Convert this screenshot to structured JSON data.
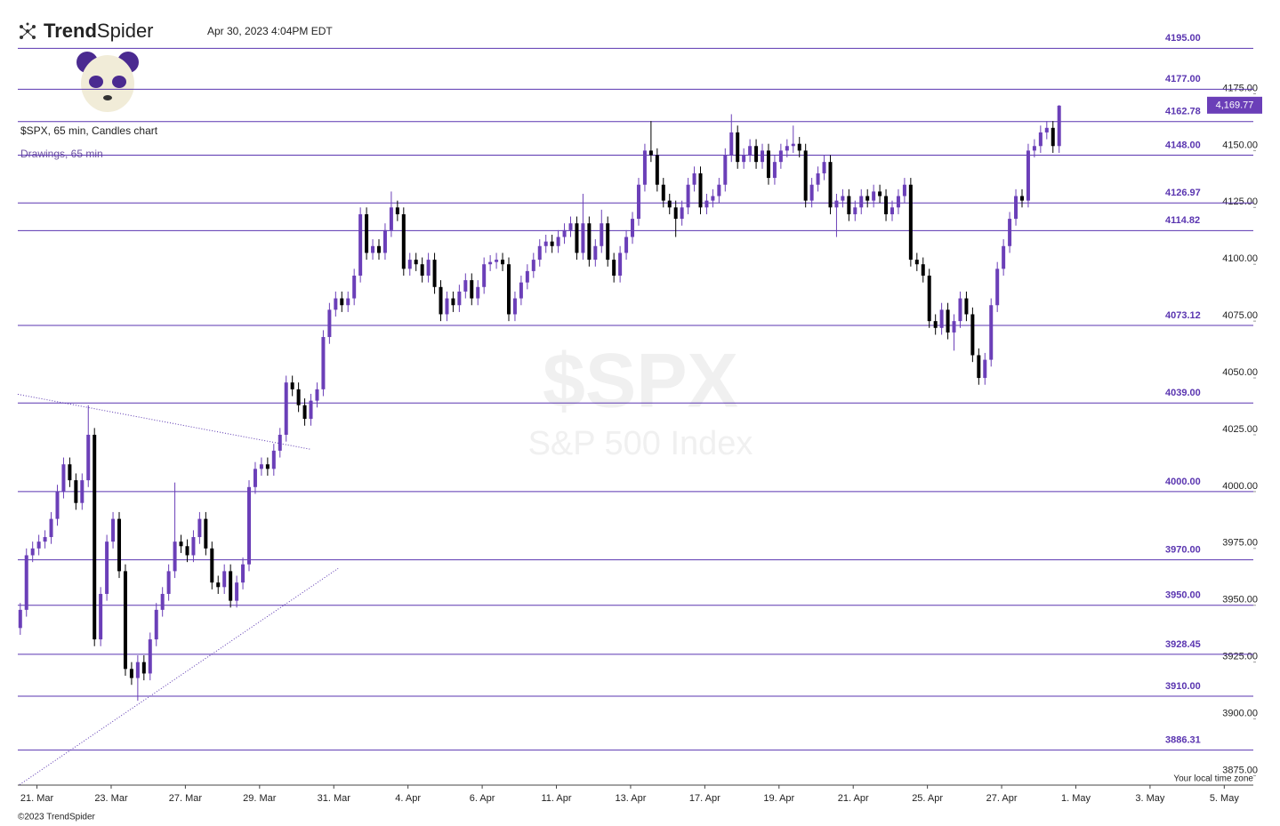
{
  "ui": {
    "brand_bold": "Trend",
    "brand": "Spider",
    "timestamp": "Apr 30, 2023 4:04PM EDT",
    "drawings": "Drawings, 65 min",
    "watermark_symbol": "$SPX",
    "watermark_name": "S&P 500 Index",
    "timezone": "Your local time zone",
    "copyright": "©2023 TrendSpider"
  },
  "chart_data": {
    "type": "candlestick",
    "title": "$SPX, 65 min, Candles chart",
    "up_color": "#6b3fb8",
    "down_color": "#000000",
    "level_color": "#5a35b0",
    "xlim": [
      -0.4,
      199.4
    ],
    "ylim": [
      3870.9,
      4200.6
    ],
    "xticks": [
      {
        "value": 2.7,
        "label": "21. Mar"
      },
      {
        "value": 14.7,
        "label": "23. Mar"
      },
      {
        "value": 26.7,
        "label": "27. Mar"
      },
      {
        "value": 38.7,
        "label": "29. Mar"
      },
      {
        "value": 50.7,
        "label": "31. Mar"
      },
      {
        "value": 62.7,
        "label": "4. Apr"
      },
      {
        "value": 74.7,
        "label": "6. Apr"
      },
      {
        "value": 86.7,
        "label": "11. Apr"
      },
      {
        "value": 98.7,
        "label": "13. Apr"
      },
      {
        "value": 110.7,
        "label": "17. Apr"
      },
      {
        "value": 122.7,
        "label": "19. Apr"
      },
      {
        "value": 134.7,
        "label": "21. Apr"
      },
      {
        "value": 146.7,
        "label": "25. Apr"
      },
      {
        "value": 158.7,
        "label": "27. Apr"
      },
      {
        "value": 170.7,
        "label": "1. May"
      },
      {
        "value": 182.7,
        "label": "3. May"
      },
      {
        "value": 194.7,
        "label": "5. May"
      }
    ],
    "yticks": [
      {
        "value": 3875,
        "label": "3875.00"
      },
      {
        "value": 3900,
        "label": "3900.00"
      },
      {
        "value": 3925,
        "label": "3925.00"
      },
      {
        "value": 3950,
        "label": "3950.00"
      },
      {
        "value": 3975,
        "label": "3975.00"
      },
      {
        "value": 4000,
        "label": "4000.00"
      },
      {
        "value": 4025,
        "label": "4025.00"
      },
      {
        "value": 4050,
        "label": "4050.00"
      },
      {
        "value": 4075,
        "label": "4075.00"
      },
      {
        "value": 4100,
        "label": "4100.00"
      },
      {
        "value": 4125,
        "label": "4125.00"
      },
      {
        "value": 4150,
        "label": "4150.00"
      },
      {
        "value": 4175,
        "label": "4175.00"
      }
    ],
    "levels": [
      {
        "value": 4195,
        "label": "4195.00"
      },
      {
        "value": 4177,
        "label": "4177.00"
      },
      {
        "value": 4162.78,
        "label": "4162.78"
      },
      {
        "value": 4148,
        "label": "4148.00"
      },
      {
        "value": 4126.97,
        "label": "4126.97"
      },
      {
        "value": 4114.82,
        "label": "4114.82"
      },
      {
        "value": 4073.12,
        "label": "4073.12"
      },
      {
        "value": 4039,
        "label": "4039.00"
      },
      {
        "value": 4000,
        "label": "4000.00"
      },
      {
        "value": 3970,
        "label": "3970.00"
      },
      {
        "value": 3950,
        "label": "3950.00"
      },
      {
        "value": 3928.45,
        "label": "3928.45"
      },
      {
        "value": 3910,
        "label": "3910.00"
      },
      {
        "value": 3886.31,
        "label": "3886.31"
      }
    ],
    "last_price": {
      "value": 4169.77,
      "label": "4,169.77"
    },
    "trendlines": [
      {
        "x": [
          -0.4,
          47.0
        ],
        "y": [
          4042.8,
          4018.6
        ]
      },
      {
        "x": [
          -0.1,
          51.4
        ],
        "y": [
          3871.1,
          3966.2
        ]
      }
    ],
    "x": [
      0,
      1,
      2,
      3,
      4,
      5,
      6,
      7,
      8,
      9,
      10,
      11,
      12,
      13,
      14,
      15,
      16,
      17,
      18,
      19,
      20,
      21,
      22,
      23,
      24,
      25,
      26,
      27,
      28,
      29,
      30,
      31,
      32,
      33,
      34,
      35,
      36,
      37,
      38,
      39,
      40,
      41,
      42,
      43,
      44,
      45,
      46,
      47,
      48,
      49,
      50,
      51,
      52,
      53,
      54,
      55,
      56,
      57,
      58,
      59,
      60,
      61,
      62,
      63,
      64,
      65,
      66,
      67,
      68,
      69,
      70,
      71,
      72,
      73,
      74,
      75,
      76,
      77,
      78,
      79,
      80,
      81,
      82,
      83,
      84,
      85,
      86,
      87,
      88,
      89,
      90,
      91,
      92,
      93,
      94,
      95,
      96,
      97,
      98,
      99,
      100,
      101,
      102,
      103,
      104,
      105,
      106,
      107,
      108,
      109,
      110,
      111,
      112,
      113,
      114,
      115,
      116,
      117,
      118,
      119,
      120,
      121,
      122,
      123,
      124,
      125,
      126,
      127,
      128,
      129,
      130,
      131,
      132,
      133,
      134,
      135,
      136,
      137,
      138,
      139,
      140,
      141,
      142,
      143,
      144,
      145,
      146,
      147,
      148,
      149,
      150,
      151,
      152,
      153,
      154,
      155,
      156,
      157,
      158,
      159,
      160,
      161,
      162,
      163,
      164,
      165,
      166,
      167,
      168
    ],
    "open": [
      3940,
      3948,
      3972,
      3975,
      3978,
      3980,
      3988,
      4000,
      4012,
      4005,
      3995,
      4005,
      4025,
      3935,
      3955,
      3978,
      3988,
      3965,
      3922,
      3918,
      3925,
      3920,
      3935,
      3948,
      3955,
      3965,
      3978,
      3976,
      3972,
      3980,
      3988,
      3975,
      3960,
      3958,
      3965,
      3952,
      3960,
      3968,
      4002,
      4010,
      4012,
      4010,
      4018,
      4025,
      4048,
      4045,
      4038,
      4032,
      4040,
      4045,
      4068,
      4080,
      4085,
      4082,
      4085,
      4095,
      4122,
      4105,
      4108,
      4105,
      4115,
      4125,
      4122,
      4098,
      4102,
      4100,
      4095,
      4102,
      4090,
      4078,
      4085,
      4082,
      4088,
      4093,
      4085,
      4090,
      4100,
      4101,
      4102,
      4100,
      4078,
      4085,
      4092,
      4097,
      4102,
      4108,
      4110,
      4108,
      4112,
      4115,
      4118,
      4105,
      4118,
      4102,
      4108,
      4118,
      4102,
      4095,
      4105,
      4112,
      4120,
      4135,
      4150,
      4148,
      4135,
      4128,
      4125,
      4120,
      4125,
      4135,
      4140,
      4125,
      4128,
      4130,
      4135,
      4148,
      4158,
      4145,
      4148,
      4152,
      4145,
      4150,
      4138,
      4145,
      4150,
      4152,
      4153,
      4150,
      4128,
      4135,
      4140,
      4145,
      4125,
      4128,
      4130,
      4122,
      4125,
      4130,
      4128,
      4132,
      4130,
      4122,
      4125,
      4130,
      4135,
      4102,
      4100,
      4095,
      4075,
      4072,
      4080,
      4070,
      4075,
      4085,
      4078,
      4060,
      4050,
      4058,
      4082,
      4098,
      4108,
      4120,
      4130,
      4128,
      4150,
      4152,
      4158,
      4160,
      4152
    ],
    "high": [
      3951,
      3975,
      3978,
      3981,
      3983,
      3991,
      4003,
      4015,
      4015,
      4008,
      4008,
      4038,
      4028,
      3958,
      3981,
      3991,
      3991,
      3968,
      3925,
      3928,
      3928,
      3938,
      3951,
      3958,
      3968,
      4004,
      3981,
      3979,
      3983,
      3991,
      3991,
      3978,
      3963,
      3968,
      3968,
      3963,
      3971,
      4005,
      4013,
      4015,
      4015,
      4021,
      4028,
      4051,
      4051,
      4048,
      4041,
      4043,
      4048,
      4071,
      4083,
      4088,
      4088,
      4088,
      4098,
      4125,
      4125,
      4111,
      4111,
      4118,
      4132,
      4128,
      4125,
      4105,
      4105,
      4103,
      4105,
      4105,
      4093,
      4088,
      4088,
      4091,
      4096,
      4096,
      4093,
      4103,
      4104,
      4105,
      4105,
      4103,
      4088,
      4095,
      4100,
      4105,
      4111,
      4113,
      4113,
      4115,
      4118,
      4121,
      4121,
      4131,
      4121,
      4111,
      4124,
      4121,
      4105,
      4108,
      4115,
      4123,
      4138,
      4153,
      4163,
      4151,
      4138,
      4131,
      4128,
      4128,
      4138,
      4143,
      4143,
      4131,
      4133,
      4138,
      4151,
      4166,
      4161,
      4151,
      4155,
      4155,
      4153,
      4153,
      4148,
      4153,
      4155,
      4161,
      4156,
      4153,
      4138,
      4143,
      4148,
      4148,
      4131,
      4133,
      4133,
      4128,
      4133,
      4133,
      4135,
      4135,
      4133,
      4128,
      4133,
      4138,
      4138,
      4105,
      4103,
      4098,
      4078,
      4083,
      4083,
      4078,
      4088,
      4088,
      4081,
      4063,
      4061,
      4085,
      4101,
      4111,
      4123,
      4133,
      4133,
      4153,
      4155,
      4161,
      4163,
      4163,
      4170
    ],
    "low": [
      3937,
      3945,
      3969,
      3972,
      3975,
      3977,
      3985,
      3997,
      4002,
      3992,
      3992,
      4002,
      3932,
      3932,
      3952,
      3975,
      3962,
      3919,
      3915,
      3908,
      3917,
      3917,
      3932,
      3945,
      3952,
      3962,
      3973,
      3969,
      3969,
      3977,
      3972,
      3957,
      3955,
      3955,
      3949,
      3949,
      3957,
      3965,
      3999,
      4007,
      4007,
      4007,
      4015,
      4022,
      4042,
      4035,
      4029,
      4029,
      4037,
      4042,
      4065,
      4077,
      4079,
      4079,
      4082,
      4092,
      4102,
      4102,
      4102,
      4102,
      4112,
      4119,
      4095,
      4095,
      4097,
      4092,
      4092,
      4087,
      4075,
      4075,
      4079,
      4079,
      4085,
      4082,
      4082,
      4087,
      4097,
      4098,
      4097,
      4075,
      4075,
      4082,
      4089,
      4094,
      4099,
      4105,
      4105,
      4105,
      4109,
      4112,
      4102,
      4102,
      4099,
      4099,
      4105,
      4099,
      4092,
      4092,
      4102,
      4109,
      4117,
      4132,
      4145,
      4132,
      4125,
      4122,
      4112,
      4117,
      4122,
      4132,
      4122,
      4122,
      4125,
      4127,
      4132,
      4145,
      4142,
      4142,
      4145,
      4142,
      4142,
      4135,
      4135,
      4142,
      4147,
      4149,
      4147,
      4125,
      4125,
      4132,
      4137,
      4122,
      4112,
      4125,
      4119,
      4119,
      4122,
      4125,
      4125,
      4127,
      4119,
      4119,
      4122,
      4127,
      4099,
      4097,
      4092,
      4072,
      4069,
      4069,
      4067,
      4062,
      4072,
      4075,
      4057,
      4047,
      4047,
      4055,
      4079,
      4095,
      4105,
      4117,
      4125,
      4125,
      4147,
      4149,
      4155,
      4149,
      4149
    ],
    "close": [
      3948,
      3972,
      3975,
      3978,
      3980,
      3988,
      4000,
      4012,
      4005,
      3995,
      4005,
      4025,
      3935,
      3955,
      3978,
      3988,
      3965,
      3922,
      3918,
      3925,
      3920,
      3935,
      3948,
      3955,
      3965,
      3978,
      3976,
      3972,
      3980,
      3988,
      3975,
      3960,
      3958,
      3965,
      3952,
      3960,
      3968,
      4002,
      4010,
      4012,
      4010,
      4018,
      4025,
      4048,
      4045,
      4038,
      4032,
      4040,
      4045,
      4068,
      4080,
      4085,
      4082,
      4085,
      4095,
      4122,
      4105,
      4108,
      4105,
      4115,
      4125,
      4122,
      4098,
      4102,
      4100,
      4095,
      4102,
      4090,
      4078,
      4085,
      4082,
      4088,
      4093,
      4085,
      4090,
      4100,
      4101,
      4102,
      4100,
      4078,
      4085,
      4092,
      4097,
      4102,
      4108,
      4110,
      4108,
      4112,
      4115,
      4118,
      4105,
      4118,
      4102,
      4108,
      4118,
      4102,
      4095,
      4105,
      4112,
      4120,
      4135,
      4150,
      4148,
      4135,
      4128,
      4125,
      4120,
      4125,
      4135,
      4140,
      4125,
      4128,
      4130,
      4135,
      4148,
      4158,
      4145,
      4148,
      4152,
      4145,
      4150,
      4138,
      4145,
      4150,
      4152,
      4153,
      4150,
      4128,
      4135,
      4140,
      4145,
      4125,
      4128,
      4130,
      4122,
      4125,
      4130,
      4128,
      4132,
      4130,
      4122,
      4125,
      4130,
      4135,
      4102,
      4100,
      4095,
      4075,
      4072,
      4080,
      4070,
      4075,
      4085,
      4078,
      4060,
      4050,
      4058,
      4082,
      4098,
      4108,
      4120,
      4130,
      4128,
      4150,
      4152,
      4158,
      4160,
      4152,
      4169.77
    ]
  }
}
